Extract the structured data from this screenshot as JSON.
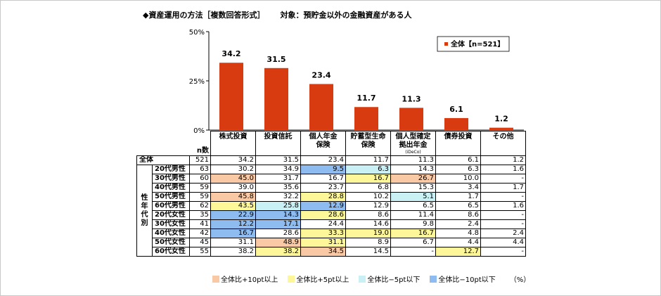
{
  "title": {
    "main": "◆資産運用の方法［複数回答形式］",
    "target": "対象：預貯金以外の金融資産がある人"
  },
  "chart_data": {
    "type": "bar",
    "categories": [
      "株式投資",
      "投資信託",
      "個人年金保険",
      "貯蓄型生命保険",
      "個人型確定拠出年金",
      "債券投資",
      "その他"
    ],
    "series": [
      {
        "name": "全体【n=521】",
        "values": [
          34.2,
          31.5,
          23.4,
          11.7,
          11.3,
          6.1,
          1.2
        ]
      }
    ],
    "y_ticks": [
      "0%",
      "25%",
      "50%"
    ],
    "ylim": [
      0,
      50
    ],
    "legend": "全体【n=521】",
    "legend_position": "top-right",
    "color": "#d83b10"
  },
  "table": {
    "n_label": "n数",
    "side_label": "性年代別",
    "headers": [
      {
        "lines": [
          "株式投資"
        ],
        "sub": ""
      },
      {
        "lines": [
          "投資信託"
        ],
        "sub": ""
      },
      {
        "lines": [
          "個人年金",
          "保険"
        ],
        "sub": ""
      },
      {
        "lines": [
          "貯蓄型生命",
          "保険"
        ],
        "sub": ""
      },
      {
        "lines": [
          "個人型確定",
          "拠出年金"
        ],
        "sub": "(iDeCo)"
      },
      {
        "lines": [
          "債券投資"
        ],
        "sub": ""
      },
      {
        "lines": [
          "その他"
        ],
        "sub": ""
      }
    ],
    "total": {
      "label": "全体",
      "n": "521",
      "values": [
        "34.2",
        "31.5",
        "23.4",
        "11.7",
        "11.3",
        "6.1",
        "1.2"
      ],
      "colors": [
        "",
        "",
        "",
        "",
        "",
        "",
        ""
      ]
    },
    "rows": [
      {
        "label": "20代男性",
        "n": "63",
        "values": [
          "30.2",
          "34.9",
          "9.5",
          "6.3",
          "14.3",
          "6.3",
          "1.6"
        ],
        "colors": [
          "",
          "",
          "b",
          "c",
          "",
          "",
          ""
        ]
      },
      {
        "label": "30代男性",
        "n": "60",
        "values": [
          "45.0",
          "31.7",
          "16.7",
          "16.7",
          "26.7",
          "10.0",
          "-"
        ],
        "colors": [
          "o",
          "",
          "",
          "y",
          "o",
          "",
          ""
        ]
      },
      {
        "label": "40代男性",
        "n": "59",
        "values": [
          "39.0",
          "35.6",
          "23.7",
          "6.8",
          "15.3",
          "3.4",
          "1.7"
        ],
        "colors": [
          "",
          "",
          "",
          "",
          "",
          "",
          ""
        ]
      },
      {
        "label": "50代男性",
        "n": "59",
        "values": [
          "45.8",
          "32.2",
          "28.8",
          "10.2",
          "5.1",
          "1.7",
          "-"
        ],
        "colors": [
          "o",
          "",
          "y",
          "",
          "c",
          "",
          ""
        ]
      },
      {
        "label": "60代男性",
        "n": "62",
        "values": [
          "43.5",
          "25.8",
          "12.9",
          "12.9",
          "6.5",
          "6.5",
          "1.6"
        ],
        "colors": [
          "y",
          "c",
          "b",
          "",
          "",
          "",
          ""
        ]
      },
      {
        "label": "20代女性",
        "n": "35",
        "values": [
          "22.9",
          "14.3",
          "28.6",
          "8.6",
          "11.4",
          "8.6",
          "-"
        ],
        "colors": [
          "b",
          "b",
          "y",
          "",
          "",
          "",
          ""
        ]
      },
      {
        "label": "30代女性",
        "n": "41",
        "values": [
          "12.2",
          "17.1",
          "24.4",
          "14.6",
          "9.8",
          "2.4",
          "-"
        ],
        "colors": [
          "b",
          "b",
          "",
          "",
          "",
          "",
          ""
        ]
      },
      {
        "label": "40代女性",
        "n": "42",
        "values": [
          "16.7",
          "28.6",
          "33.3",
          "19.0",
          "16.7",
          "4.8",
          "2.4"
        ],
        "colors": [
          "b",
          "",
          "y",
          "y",
          "y",
          "",
          ""
        ]
      },
      {
        "label": "50代女性",
        "n": "45",
        "values": [
          "31.1",
          "48.9",
          "31.1",
          "8.9",
          "6.7",
          "4.4",
          "4.4"
        ],
        "colors": [
          "",
          "o",
          "y",
          "",
          "",
          "",
          ""
        ]
      },
      {
        "label": "60代女性",
        "n": "55",
        "values": [
          "38.2",
          "38.2",
          "34.5",
          "14.5",
          "-",
          "12.7",
          "-"
        ],
        "colors": [
          "",
          "y",
          "o",
          "",
          "",
          "y",
          ""
        ]
      }
    ]
  },
  "legend": {
    "items": [
      {
        "label": "全体比+10pt以上",
        "color": "#f9c9a5"
      },
      {
        "label": "全体比+5pt以上",
        "color": "#fdf79a"
      },
      {
        "label": "全体比−5pt以下",
        "color": "#c9f0f5"
      },
      {
        "label": "全体比−10pt以下",
        "color": "#8ebcf0"
      }
    ],
    "unit": "（%）"
  }
}
